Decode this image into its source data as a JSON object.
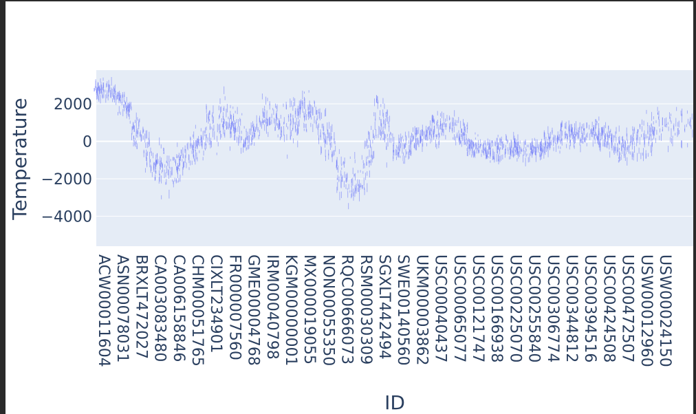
{
  "chart_data": {
    "type": "scatter",
    "xlabel": "ID",
    "ylabel": "Temperature",
    "y_ticks": [
      2000,
      0,
      -2000,
      -4000
    ],
    "y_tick_labels": [
      "2000",
      "0",
      "−2000",
      "−4000"
    ],
    "ylim": [
      -5600,
      3800
    ],
    "x_tick_labels": [
      "ACW00011604",
      "ASN00078031",
      "BRXLT472027",
      "CA003083480",
      "CA006158846",
      "CHM00051765",
      "CIXLT234901",
      "FR000007560",
      "GME00004768",
      "IRM00040798",
      "KGM00000001",
      "MX000019055",
      "NON00055350",
      "RQC00666073",
      "RSM00030309",
      "SGXLT442494",
      "SWE00140560",
      "UKM00003862",
      "USC00040437",
      "USC00065077",
      "USC00121747",
      "USC00166938",
      "USC00225070",
      "USC00255840",
      "USC00306774",
      "USC00344812",
      "USC00394516",
      "USC00424508",
      "USC00472507",
      "USW00012960",
      "USW00024150"
    ],
    "series": [
      {
        "color": "#636efa",
        "segment_means": [
          2800,
          2600,
          800,
          -1300,
          -1600,
          -600,
          700,
          1200,
          -100,
          1500,
          700,
          1600,
          900,
          -1600,
          -2600,
          1500,
          -600,
          100,
          600,
          900,
          -300,
          -500,
          -300,
          -500,
          -200,
          400,
          300,
          400,
          -400,
          200,
          800
        ],
        "segment_spread": [
          500,
          500,
          900,
          1000,
          900,
          900,
          1100,
          1000,
          500,
          900,
          1100,
          900,
          1100,
          1200,
          1300,
          1400,
          700,
          500,
          700,
          700,
          500,
          600,
          500,
          500,
          600,
          600,
          600,
          600,
          700,
          1000,
          1100
        ]
      }
    ],
    "grid": true,
    "legend": "none"
  }
}
